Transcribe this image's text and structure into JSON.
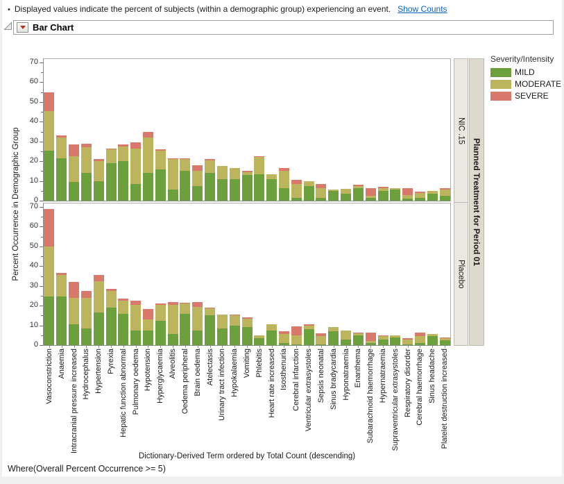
{
  "header": {
    "bullet": "•",
    "text": "Displayed values indicate the percent of subjects (within a demographic group) experiencing an event.",
    "link": "Show Counts"
  },
  "title_bar": {
    "title": "Bar Chart"
  },
  "footer": {
    "where": "Where(Overall Percent Occurrence >= 5)"
  },
  "chart_data": {
    "type": "bar",
    "stacked": true,
    "ylabel": "Percent Occurrence in Demographic Group",
    "xlabel": "Dictionary-Derived Term ordered by Total Count (descending)",
    "ylim": [
      0,
      70
    ],
    "yticks": [
      0,
      10,
      20,
      30,
      40,
      50,
      60,
      70
    ],
    "y_minor_tick_step": 5,
    "grid": false,
    "legend": {
      "title": "Severity/Intensity",
      "position": "right",
      "entries": [
        {
          "label": "MILD",
          "color": "#6BA03C"
        },
        {
          "label": "MODERATE",
          "color": "#BCB55E"
        },
        {
          "label": "SEVERE",
          "color": "#D9796B"
        }
      ]
    },
    "panel_group_label": "Planned Treatment for Period 01",
    "categories": [
      "Vasoconstriction",
      "Anaemia",
      "Intracranial pressure increased",
      "Hydrocephalus",
      "Hypertension",
      "Pyrexia",
      "Hepatic function abnormal",
      "Pulmonary oedema",
      "Hypotension",
      "Hyperglycaemia",
      "Alveolitis",
      "Oedema peripheral",
      "Brain oedema",
      "Atelectasis",
      "Urinary tract infection",
      "Hypokalaemia",
      "Vomiting",
      "Phlebitis",
      "Heart rate increased",
      "Isosthenuria",
      "Cerebral infarction",
      "Ventricular extrasystoles",
      "Sepsis neonatal",
      "Sinus bradycardia",
      "Hyponatraemia",
      "Enanthema",
      "Subarachnoid haemorrhage",
      "Hypernatraemia",
      "Supraventricular extrasystoles",
      "Respiratory disorder",
      "Cerebral haemorrhage",
      "Sinus headache",
      "Platelet destruction increased"
    ],
    "panels": [
      {
        "label": "NIC .15",
        "series": [
          {
            "name": "MILD",
            "values": [
              25.5,
              21.5,
              9.5,
              14,
              10,
              19,
              20,
              8.5,
              14,
              16,
              5.5,
              15,
              7.5,
              14,
              11,
              11,
              13,
              13.5,
              11,
              6.5,
              1.5,
              7.5,
              1.5,
              5,
              3.5,
              6.5,
              1.5,
              5,
              5.5,
              1,
              1.5,
              3.5,
              2.5
            ]
          },
          {
            "name": "MODERATE",
            "values": [
              20,
              10.5,
              13,
              13,
              10,
              7,
              7.5,
              18,
              18,
              9.5,
              15.5,
              6,
              7.5,
              6.5,
              6.5,
              5.5,
              1.5,
              8.5,
              2.5,
              8.5,
              7,
              2.5,
              5,
              0.5,
              2.5,
              1,
              1,
              1.5,
              1,
              2,
              2.5,
              1.5,
              3
            ]
          },
          {
            "name": "SEVERE",
            "values": [
              9.5,
              1,
              6,
              2,
              1,
              0.5,
              1,
              3,
              3,
              0.5,
              0.5,
              0.5,
              3,
              0.5,
              0,
              0,
              0.5,
              0.5,
              0,
              1.5,
              2,
              0,
              2,
              0,
              0,
              0.5,
              4,
              0.5,
              0,
              3.5,
              0.5,
              0,
              1
            ]
          }
        ]
      },
      {
        "label": "Placebo",
        "series": [
          {
            "name": "MILD",
            "values": [
              24.5,
              24.5,
              10.5,
              8.5,
              16.5,
              19,
              16,
              7.5,
              7.5,
              12.5,
              5.5,
              16,
              7.5,
              15,
              8.5,
              10,
              9,
              3.5,
              7.5,
              1,
              0.5,
              8,
              0.5,
              7,
              3,
              5,
              1,
              3,
              4,
              0.5,
              1,
              4.5,
              2.5
            ]
          },
          {
            "name": "MODERATE",
            "values": [
              25.5,
              11,
              13.5,
              15.5,
              16,
              8.5,
              6.5,
              13,
              5.5,
              8,
              15,
              5,
              12,
              3.5,
              7,
              5,
              4.5,
              1.5,
              3,
              4.5,
              4.5,
              2,
              4,
              2,
              4.5,
              1,
              1,
              1.5,
              1,
              2.5,
              3.5,
              1,
              1
            ]
          },
          {
            "name": "SEVERE",
            "values": [
              19,
              1,
              8,
              3.5,
              3,
              1,
              1,
              2,
              5.5,
              0.5,
              1.5,
              0.5,
              2.5,
              0.5,
              0,
              0.5,
              0.5,
              0,
              0,
              1.5,
              4.5,
              0.5,
              1.5,
              0,
              0,
              0.5,
              4.5,
              0.5,
              0,
              0.5,
              2,
              0,
              0.5
            ]
          }
        ]
      }
    ]
  }
}
